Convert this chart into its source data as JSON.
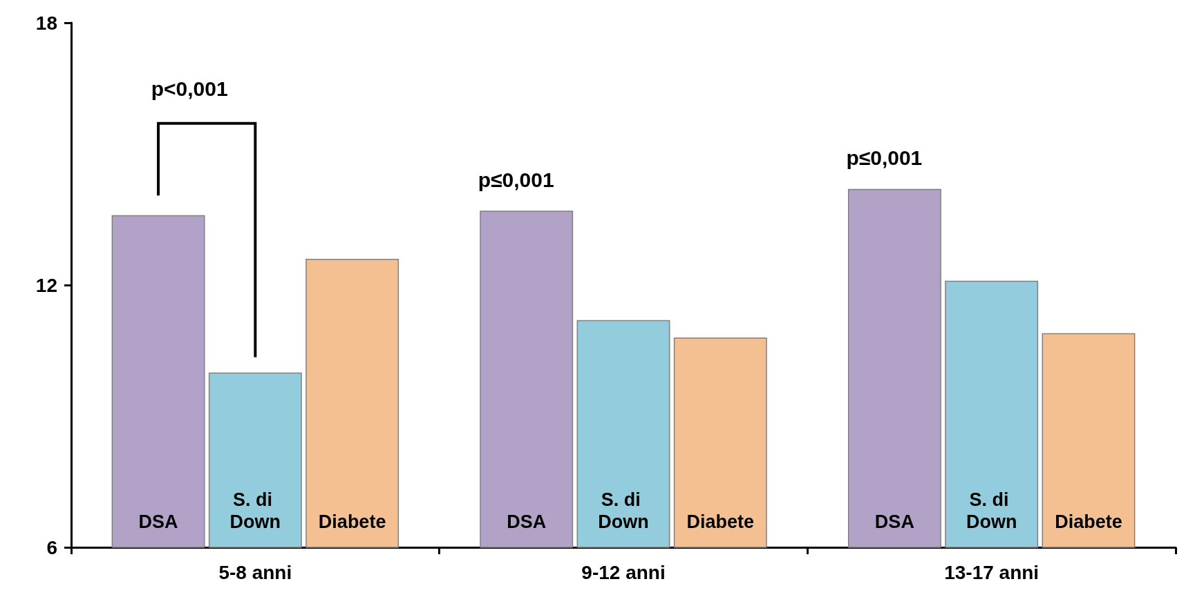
{
  "chart_data": {
    "type": "bar",
    "categories": [
      "5-8 anni",
      "9-12 anni",
      "13-17 anni"
    ],
    "series": [
      {
        "name": "DSA",
        "color": "#b3a2c7",
        "values": [
          13.6,
          13.7,
          14.2
        ]
      },
      {
        "name": "S. di Down",
        "color": "#93cddd",
        "values": [
          10.0,
          11.2,
          12.1
        ]
      },
      {
        "name": "Diabete",
        "color": "#f4c091",
        "values": [
          12.6,
          10.8,
          10.9
        ]
      }
    ],
    "ylim": [
      6,
      18
    ],
    "yticks": [
      6,
      12,
      18
    ],
    "grid": false,
    "legend": false,
    "annotations": [
      "p<0,001",
      "p≤0,001",
      "p≤0,001"
    ]
  }
}
